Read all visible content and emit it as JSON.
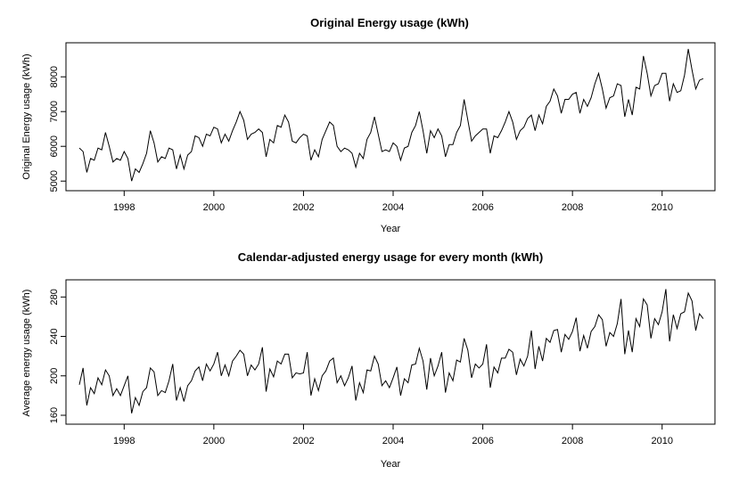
{
  "chart_data": [
    {
      "type": "line",
      "title": "Original Energy usage (kWh)",
      "xlabel": "Year",
      "ylabel": "Original Energy usage (kWh)",
      "xlim": [
        1997.0,
        2010.92
      ],
      "ylim": [
        4980,
        8800
      ],
      "xticks": [
        1998,
        2000,
        2002,
        2004,
        2006,
        2008,
        2010
      ],
      "yticks": [
        5000,
        6000,
        7000,
        8000
      ],
      "grid": false,
      "series": [
        {
          "x_start": 1997.0,
          "x_step": 0.0833333,
          "values": [
            5950,
            5850,
            5250,
            5650,
            5600,
            5950,
            5900,
            6400,
            6000,
            5550,
            5650,
            5600,
            5850,
            5650,
            5000,
            5350,
            5250,
            5500,
            5800,
            6450,
            6100,
            5550,
            5700,
            5650,
            5950,
            5900,
            5350,
            5750,
            5350,
            5750,
            5850,
            6300,
            6250,
            6000,
            6350,
            6300,
            6550,
            6500,
            6100,
            6350,
            6150,
            6450,
            6700,
            7000,
            6750,
            6200,
            6350,
            6400,
            6500,
            6400,
            5700,
            6200,
            6100,
            6600,
            6550,
            6900,
            6700,
            6150,
            6100,
            6250,
            6350,
            6300,
            5600,
            5900,
            5700,
            6200,
            6450,
            6700,
            6600,
            6000,
            5850,
            5950,
            5900,
            5800,
            5400,
            5800,
            5650,
            6200,
            6400,
            6850,
            6350,
            5850,
            5900,
            5850,
            6100,
            6000,
            5600,
            5950,
            6000,
            6400,
            6600,
            7000,
            6450,
            5800,
            6450,
            6250,
            6500,
            6300,
            5700,
            6050,
            6050,
            6400,
            6600,
            7350,
            6750,
            6150,
            6300,
            6400,
            6500,
            6500,
            5800,
            6300,
            6250,
            6450,
            6700,
            7000,
            6700,
            6200,
            6450,
            6550,
            6800,
            6900,
            6450,
            6900,
            6650,
            7150,
            7300,
            7650,
            7450,
            6950,
            7350,
            7350,
            7500,
            7550,
            6950,
            7350,
            7150,
            7400,
            7800,
            8100,
            7650,
            7100,
            7400,
            7450,
            7800,
            7750,
            6850,
            7350,
            6900,
            7700,
            7650,
            8600,
            8100,
            7450,
            7750,
            7800,
            8100,
            8100,
            7300,
            7800,
            7550,
            7600,
            8050,
            8800,
            8200,
            7650,
            7900,
            7950
          ]
        }
      ]
    },
    {
      "type": "line",
      "title": "Calendar-adjusted energy usage for every month (kWh)",
      "xlabel": "Year",
      "ylabel": "Average energy usage (kWh)",
      "xlim": [
        1997.0,
        2010.92
      ],
      "ylim": [
        160,
        292
      ],
      "xticks": [
        1998,
        2000,
        2002,
        2004,
        2006,
        2008,
        2010
      ],
      "yticks": [
        160,
        200,
        240,
        280
      ],
      "grid": false,
      "series": [
        {
          "x_start": 1997.0,
          "x_step": 0.0833333,
          "values": [
            191,
            208,
            170,
            188,
            182,
            198,
            191,
            206,
            200,
            180,
            187,
            180,
            190,
            200,
            162,
            178,
            170,
            184,
            188,
            208,
            204,
            180,
            185,
            183,
            195,
            212,
            175,
            188,
            174,
            190,
            195,
            205,
            209,
            195,
            212,
            205,
            212,
            224,
            200,
            211,
            200,
            215,
            220,
            226,
            222,
            200,
            211,
            206,
            212,
            229,
            184,
            207,
            199,
            215,
            212,
            222,
            222,
            198,
            203,
            202,
            203,
            224,
            180,
            197,
            185,
            200,
            205,
            215,
            218,
            193,
            200,
            190,
            198,
            210,
            175,
            193,
            183,
            206,
            205,
            220,
            212,
            190,
            195,
            188,
            198,
            209,
            180,
            197,
            193,
            211,
            212,
            228,
            215,
            186,
            218,
            200,
            210,
            224,
            183,
            203,
            195,
            216,
            214,
            238,
            226,
            198,
            212,
            208,
            212,
            232,
            188,
            209,
            203,
            218,
            218,
            227,
            224,
            201,
            217,
            210,
            220,
            246,
            207,
            230,
            215,
            238,
            234,
            246,
            247,
            224,
            242,
            237,
            245,
            259,
            225,
            241,
            228,
            245,
            250,
            262,
            257,
            230,
            244,
            240,
            253,
            278,
            222,
            246,
            224,
            258,
            250,
            278,
            272,
            238,
            258,
            252,
            265,
            288,
            235,
            262,
            248,
            263,
            265,
            284,
            276,
            246,
            263,
            258
          ]
        }
      ]
    }
  ]
}
